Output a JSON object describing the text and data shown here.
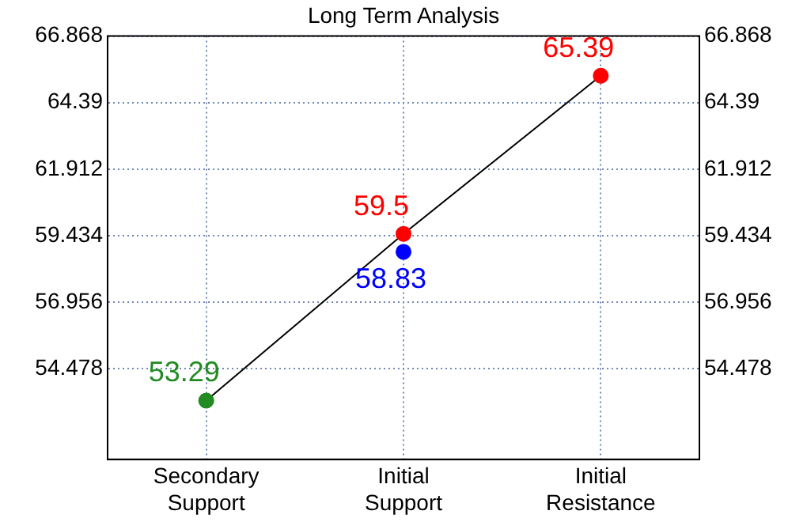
{
  "chart_data": {
    "type": "line",
    "title": "Long Term Analysis",
    "categories": [
      "Secondary Support",
      "Initial Support",
      "Initial Resistance"
    ],
    "series": [
      {
        "color": "#000000",
        "colors": [
          "#228b22",
          "#ff0000",
          "#ff0000"
        ],
        "values": [
          53.29,
          59.5,
          65.39
        ]
      },
      {
        "type": "scatter",
        "color": "#0000ff",
        "x": [
          "Initial Support"
        ],
        "values": [
          58.83
        ]
      }
    ],
    "ylim": [
      51.1,
      66.868
    ],
    "yticks": [
      54.478,
      56.956,
      59.434,
      61.912,
      64.39,
      66.868
    ],
    "y2lim": [
      51.1,
      66.868
    ],
    "y2ticks": [
      54.478,
      56.956,
      59.434,
      61.912,
      64.39,
      66.868
    ],
    "grid": true,
    "line_style": "solid",
    "marker": "circle",
    "data_labels": true
  }
}
